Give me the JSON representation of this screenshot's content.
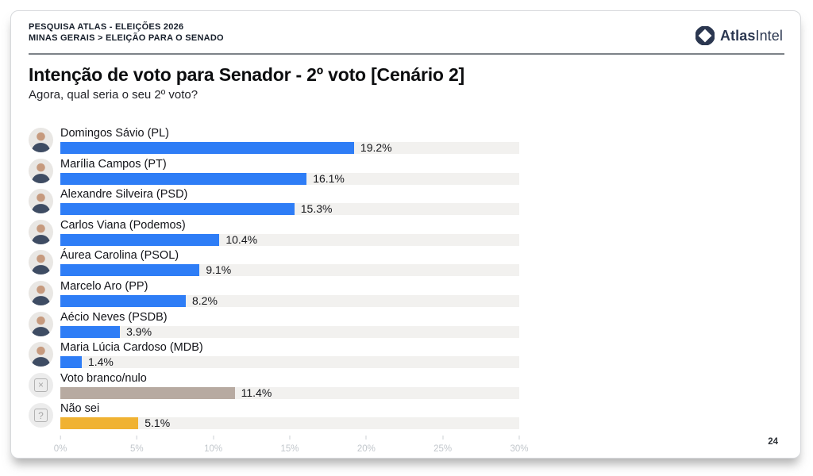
{
  "header": {
    "kicker_line1": "PESQUISA ATLAS - ELEIÇÕES 2026",
    "kicker_line2": "MINAS GERAIS > ELEIÇÃO PARA O SENADO",
    "brand": {
      "name_bold": "Atlas",
      "name_regular": "Intel",
      "logo_color": "#2b3750"
    }
  },
  "title": "Intenção de voto para Senador - 2º voto [Cenário 2]",
  "subtitle": "Agora, qual seria o seu 2º voto?",
  "page_number": "24",
  "chart_data": {
    "type": "bar",
    "orientation": "horizontal",
    "unit": "%",
    "xlim": [
      0,
      30
    ],
    "x_ticks": [
      "0%",
      "5%",
      "10%",
      "15%",
      "20%",
      "25%",
      "30%"
    ],
    "grid": false,
    "legend": "none",
    "track_color": "#f2f1ef",
    "bar_default_color": "#2e7df6",
    "rows": [
      {
        "label": "Domingos Sávio (PL)",
        "value": 19.2,
        "value_label": "19.2%",
        "color": "#2e7df6",
        "icon": "photo-avatar"
      },
      {
        "label": "Marília Campos (PT)",
        "value": 16.1,
        "value_label": "16.1%",
        "color": "#2e7df6",
        "icon": "photo-avatar"
      },
      {
        "label": "Alexandre Silveira (PSD)",
        "value": 15.3,
        "value_label": "15.3%",
        "color": "#2e7df6",
        "icon": "photo-avatar"
      },
      {
        "label": "Carlos Viana (Podemos)",
        "value": 10.4,
        "value_label": "10.4%",
        "color": "#2e7df6",
        "icon": "photo-avatar"
      },
      {
        "label": "Áurea Carolina (PSOL)",
        "value": 9.1,
        "value_label": "9.1%",
        "color": "#2e7df6",
        "icon": "photo-avatar"
      },
      {
        "label": "Marcelo Aro (PP)",
        "value": 8.2,
        "value_label": "8.2%",
        "color": "#2e7df6",
        "icon": "photo-avatar"
      },
      {
        "label": "Aécio Neves (PSDB)",
        "value": 3.9,
        "value_label": "3.9%",
        "color": "#2e7df6",
        "icon": "photo-avatar"
      },
      {
        "label": "Maria Lúcia Cardoso (MDB)",
        "value": 1.4,
        "value_label": "1.4%",
        "color": "#2e7df6",
        "icon": "photo-avatar"
      },
      {
        "label": "Voto branco/nulo",
        "value": 11.4,
        "value_label": "11.4%",
        "color": "#b7aaa1",
        "icon": "blank-null-vote-icon"
      },
      {
        "label": "Não sei",
        "value": 5.1,
        "value_label": "5.1%",
        "color": "#f0b232",
        "icon": "dont-know-icon"
      }
    ]
  }
}
